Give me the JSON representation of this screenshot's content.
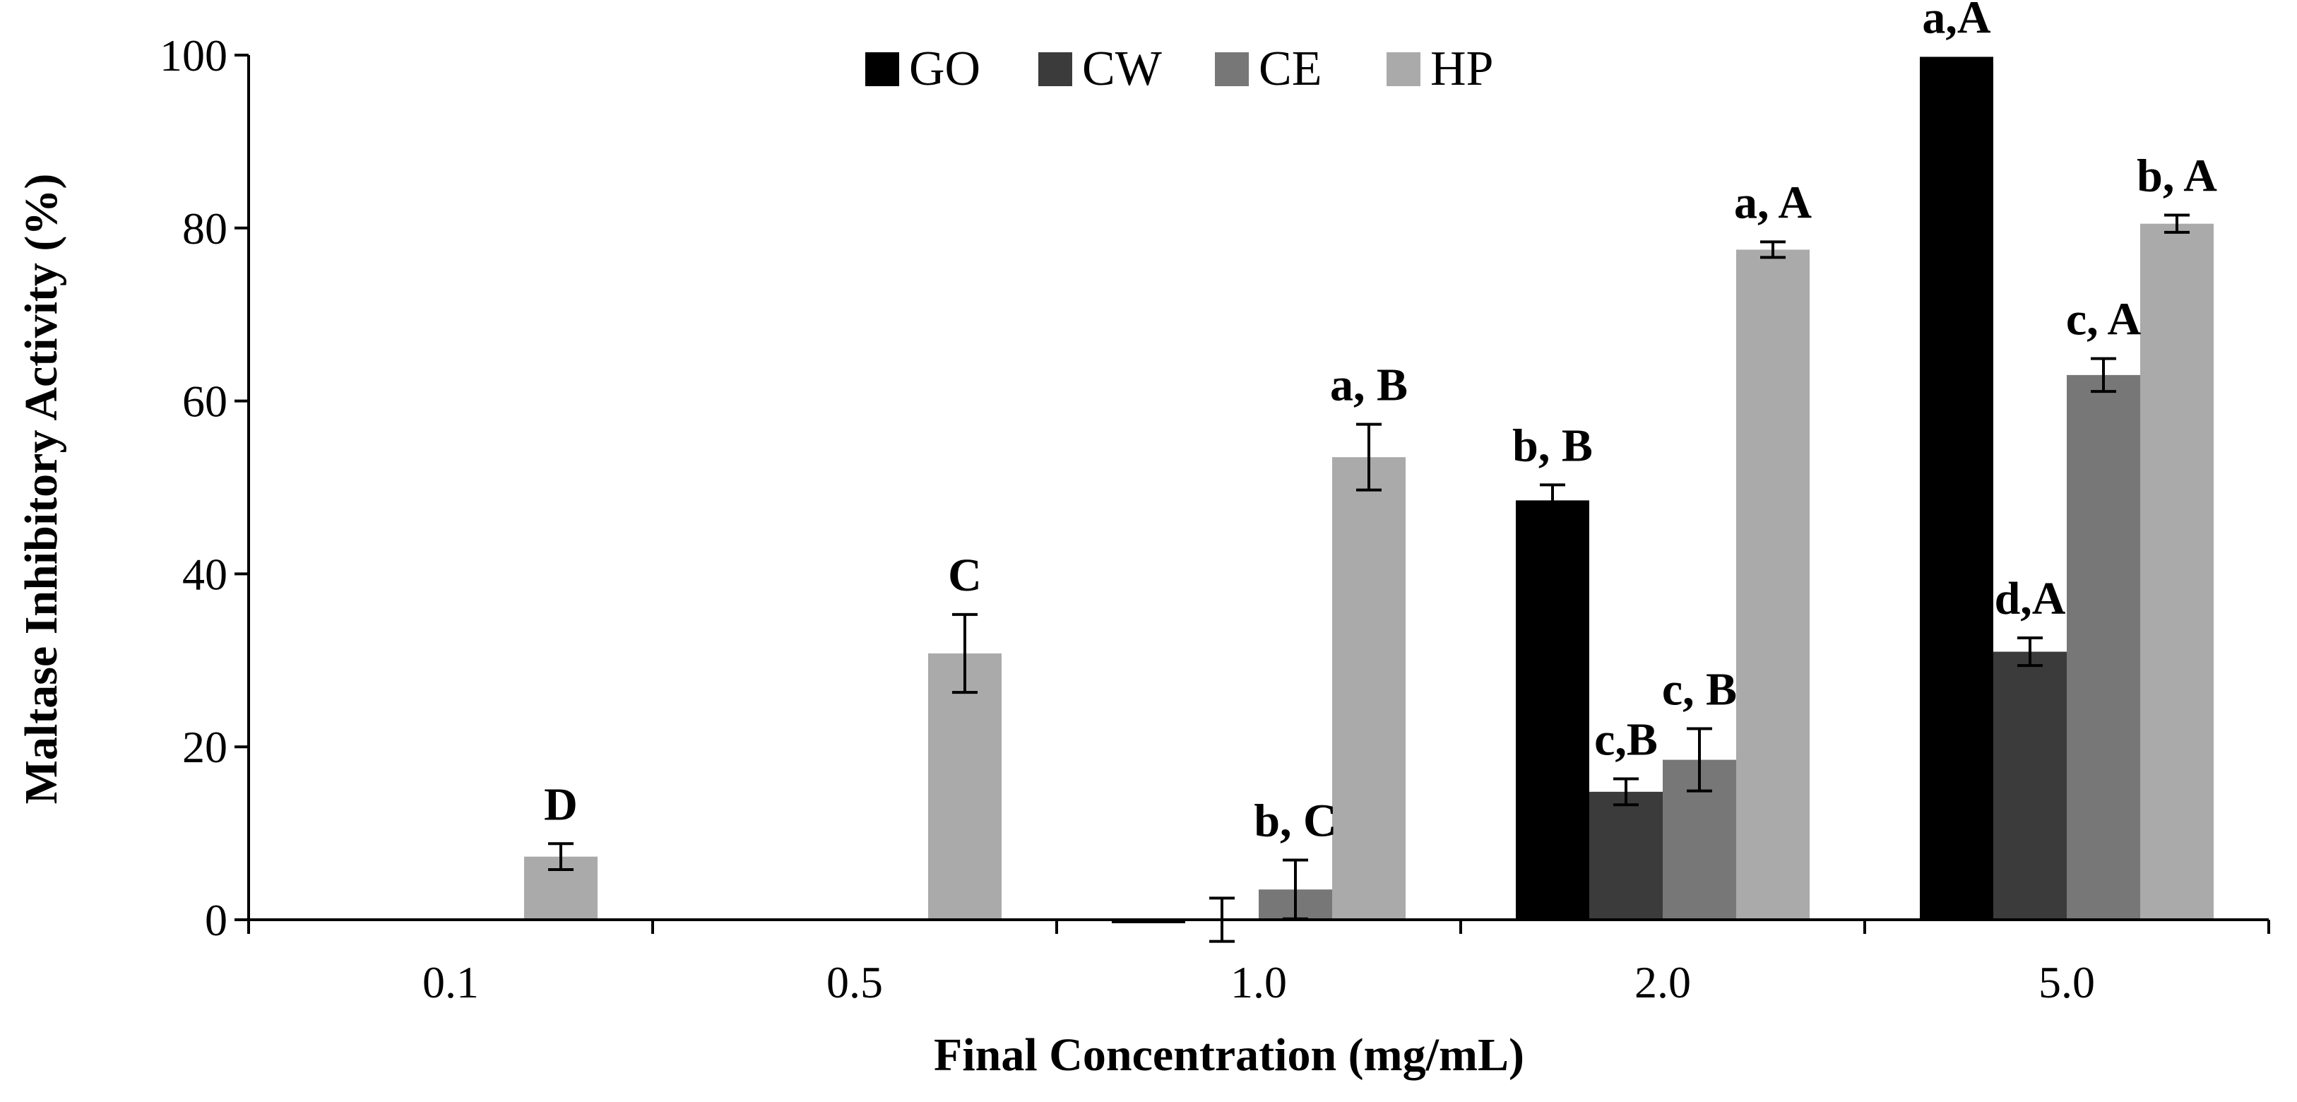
{
  "chart_data": {
    "type": "bar",
    "title": "",
    "xlabel": "Final Concentration (mg/mL)",
    "ylabel": "Maltase Inhibitory Activity (%)",
    "ylim": [
      0,
      100
    ],
    "yticks": [
      "0",
      "20",
      "40",
      "60",
      "80",
      "100"
    ],
    "categories": [
      "0.1",
      "0.5",
      "1.0",
      "2.0",
      "5.0"
    ],
    "legend_position": "top-center",
    "grid": false,
    "series": [
      {
        "name": "GO",
        "color": "#000000",
        "values": [
          null,
          null,
          -0.4,
          48.5,
          99.8
        ],
        "errors": [
          null,
          null,
          0,
          1.8,
          0
        ]
      },
      {
        "name": "CW",
        "color": "#3b3b3b",
        "values": [
          null,
          null,
          0,
          14.8,
          31.0
        ],
        "errors": [
          null,
          null,
          2.5,
          1.5,
          1.6
        ]
      },
      {
        "name": "CE",
        "color": "#777777",
        "values": [
          null,
          null,
          3.5,
          18.5,
          63.0
        ],
        "errors": [
          null,
          null,
          3.4,
          3.6,
          1.9
        ]
      },
      {
        "name": "HP",
        "color": "#aaaaaa",
        "values": [
          7.3,
          30.8,
          53.5,
          77.5,
          80.5
        ],
        "errors": [
          1.5,
          4.5,
          3.8,
          0.9,
          1.0
        ]
      }
    ],
    "annotations": [
      {
        "category": 0,
        "series": 3,
        "text": "D"
      },
      {
        "category": 1,
        "series": 3,
        "text": "C"
      },
      {
        "category": 2,
        "series": 2,
        "text": "b, C"
      },
      {
        "category": 2,
        "series": 3,
        "text": "a, B"
      },
      {
        "category": 3,
        "series": 0,
        "text": "b, B"
      },
      {
        "category": 3,
        "series": 1,
        "text": "c,B"
      },
      {
        "category": 3,
        "series": 2,
        "text": "c, B"
      },
      {
        "category": 3,
        "series": 3,
        "text": "a, A"
      },
      {
        "category": 4,
        "series": 0,
        "text": "a,A"
      },
      {
        "category": 4,
        "series": 1,
        "text": "d,A"
      },
      {
        "category": 4,
        "series": 2,
        "text": "c, A"
      },
      {
        "category": 4,
        "series": 3,
        "text": "b, A"
      }
    ]
  }
}
